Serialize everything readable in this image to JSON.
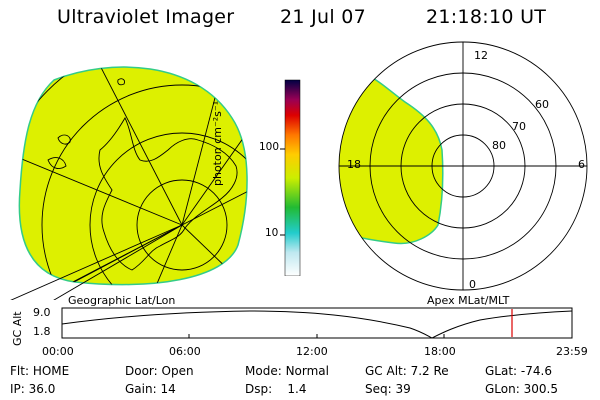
{
  "header": {
    "instrument": "Ultraviolet Imager",
    "date": "21 Jul 07",
    "time": "21:18:10 UT"
  },
  "colors": {
    "aurora_fill": "#ddf000",
    "aurora_edge": "#33cc88",
    "marker": "#dd0000"
  },
  "left_map": {
    "title": "Geographic Lat/Lon"
  },
  "right_map": {
    "title": "Apex MLat/MLT",
    "mlt_labels": {
      "top": "12",
      "left": "18",
      "right": "6",
      "bottom": "0"
    },
    "lat_labels": [
      "80",
      "70",
      "60"
    ]
  },
  "colorbar": {
    "units": "photon cm⁻²s⁻¹",
    "tick_labels": [
      "100",
      "10"
    ]
  },
  "altitude_plot": {
    "axis_title": "GC Alt",
    "y_labels": [
      "9.0",
      "1.8"
    ],
    "x_labels": [
      "00:00",
      "06:00",
      "12:00",
      "18:00",
      "23:59"
    ]
  },
  "info_panel": {
    "rows": [
      [
        {
          "key": "Flt",
          "value": "HOME"
        },
        {
          "key": "Door",
          "value": "Open"
        },
        {
          "key": "Mode",
          "value": "Normal"
        },
        {
          "key": "GC Alt",
          "value": "7.2 Re"
        },
        {
          "key": "GLat",
          "value": "-74.6"
        }
      ],
      [
        {
          "key": "IP",
          "value": "36.0"
        },
        {
          "key": "Gain",
          "value": "14"
        },
        {
          "key": "Dsp",
          "value": "1.4"
        },
        {
          "key": "Seq",
          "value": "39"
        },
        {
          "key": "GLon",
          "value": "300.5"
        }
      ]
    ]
  }
}
